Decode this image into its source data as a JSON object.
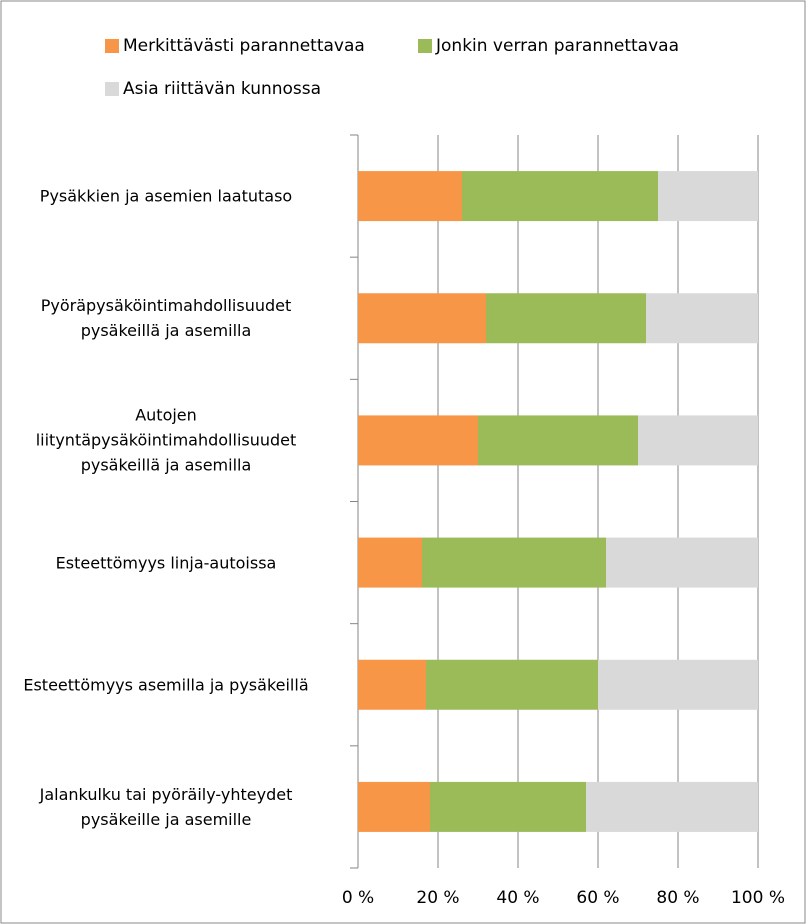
{
  "chart_data": {
    "type": "stacked-barh",
    "categories": [
      "Pysäkkien ja asemien laatutaso",
      "Pyöräpysäköintimahdollisuudet\npysäkeillä ja asemilla",
      "Autojen\nliityntäpysäköintimahdollisuudet\npysäkeillä ja asemilla",
      "Esteettömyys linja-autoissa",
      "Esteettömyys asemilla ja pysäkeillä",
      "Jalankulku tai pyöräily-yhteydet\npysäkeille ja asemille"
    ],
    "series": [
      {
        "name": "Merkittävästi parannettavaa",
        "color": "#f79646",
        "values": [
          26,
          32,
          30,
          16,
          17,
          18
        ]
      },
      {
        "name": "Jonkin verran parannettavaa",
        "color": "#9bbb59",
        "values": [
          49,
          40,
          40,
          46,
          43,
          39
        ]
      },
      {
        "name": "Asia riittävän kunnossa",
        "color": "#d9d9d9",
        "values": [
          25,
          28,
          30,
          38,
          40,
          43
        ]
      }
    ],
    "xlim": [
      0,
      100
    ],
    "xticks": [
      {
        "value": 0,
        "label": "0 %"
      },
      {
        "value": 20,
        "label": "20 %"
      },
      {
        "value": 40,
        "label": "40 %"
      },
      {
        "value": 60,
        "label": "60 %"
      },
      {
        "value": 80,
        "label": "80 %"
      },
      {
        "value": 100,
        "label": "100 %"
      }
    ],
    "grid": true,
    "legend": "top"
  }
}
